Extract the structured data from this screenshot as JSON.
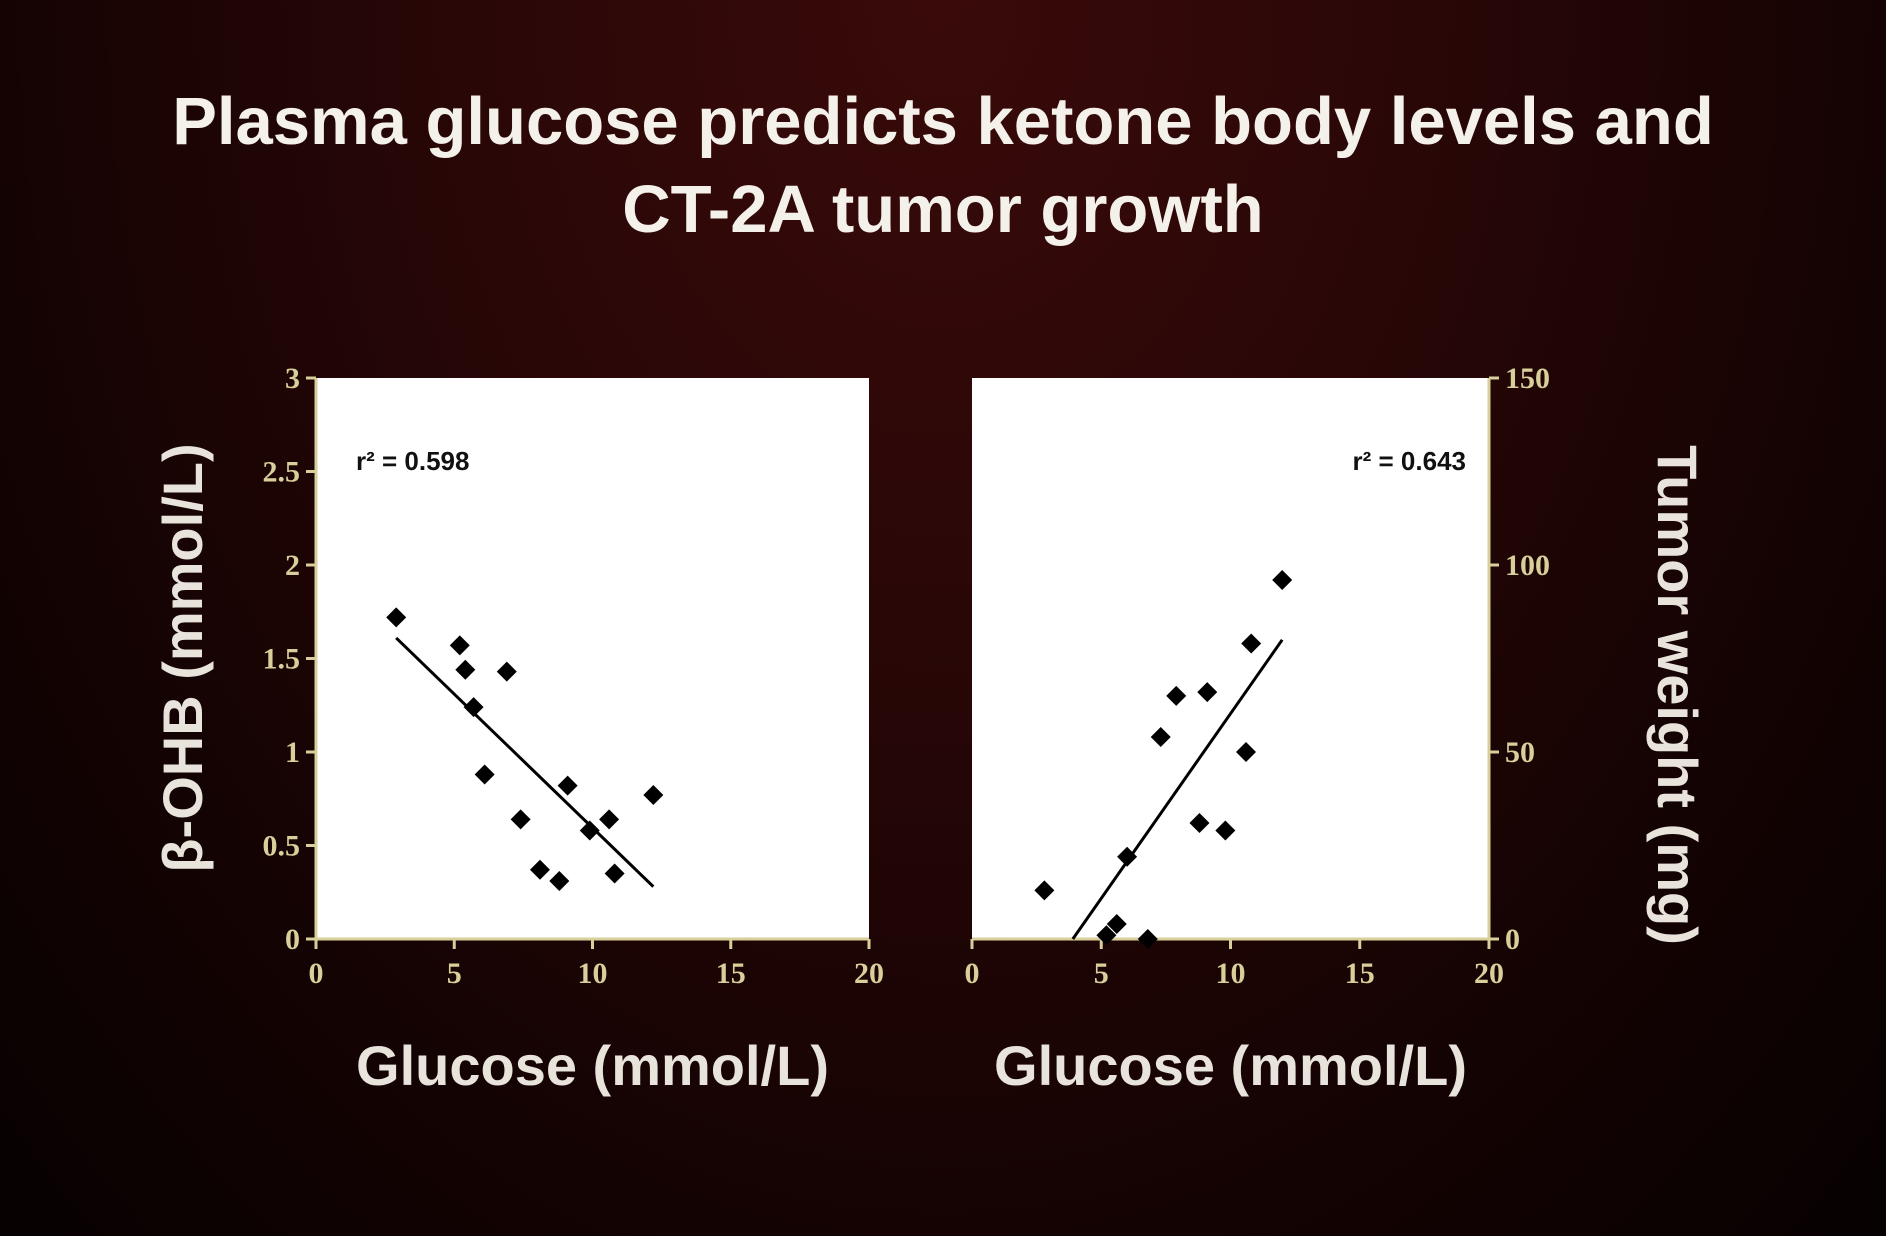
{
  "title": {
    "line1": "Plasma glucose predicts ketone body levels and",
    "line2": "CT-2A tumor growth"
  },
  "colors": {
    "tick": "#d8cf9a",
    "label": "#e8e4dc",
    "plot_bg": "#ffffff",
    "marker": "#000000"
  },
  "chart_data": [
    {
      "type": "scatter",
      "xlabel": "Glucose (mmol/L)",
      "ylabel": "β-OHB (mmol/L)",
      "xlim": [
        0,
        20
      ],
      "ylim": [
        0,
        3
      ],
      "xticks": [
        "0",
        "5",
        "10",
        "15",
        "20"
      ],
      "yticks": [
        "0",
        "0.5",
        "1",
        "1.5",
        "2",
        "2.5",
        "3"
      ],
      "ytick_side": "left",
      "annotation": "r² = 0.598",
      "annotation_position": "top-left",
      "marker": "diamond",
      "x": [
        2.9,
        5.2,
        5.4,
        5.7,
        6.1,
        6.9,
        7.4,
        8.1,
        8.8,
        9.1,
        9.9,
        10.6,
        10.8,
        12.2
      ],
      "y": [
        1.72,
        1.57,
        1.44,
        1.24,
        0.88,
        1.43,
        0.64,
        0.37,
        0.31,
        0.82,
        0.58,
        0.64,
        0.35,
        0.77
      ],
      "fit_line": {
        "x": [
          2.9,
          12.2
        ],
        "y": [
          1.61,
          0.28
        ]
      }
    },
    {
      "type": "scatter",
      "xlabel": "Glucose (mmol/L)",
      "ylabel": "Tumor weight (mg)",
      "xlim": [
        0,
        20
      ],
      "ylim": [
        0,
        150
      ],
      "xticks": [
        "0",
        "5",
        "10",
        "15",
        "20"
      ],
      "yticks": [
        "0",
        "50",
        "100",
        "150"
      ],
      "ytick_side": "right",
      "annotation": "r² = 0.643",
      "annotation_position": "top-right",
      "marker": "diamond",
      "x": [
        2.8,
        5.2,
        5.6,
        6.0,
        6.8,
        7.3,
        7.9,
        8.8,
        9.1,
        9.8,
        10.6,
        10.8,
        12.0
      ],
      "y": [
        13,
        1,
        4,
        22,
        0,
        54,
        65,
        31,
        66,
        29,
        50,
        79,
        96
      ],
      "fit_line": {
        "x": [
          3.9,
          12.0
        ],
        "y": [
          0,
          80
        ]
      }
    }
  ]
}
